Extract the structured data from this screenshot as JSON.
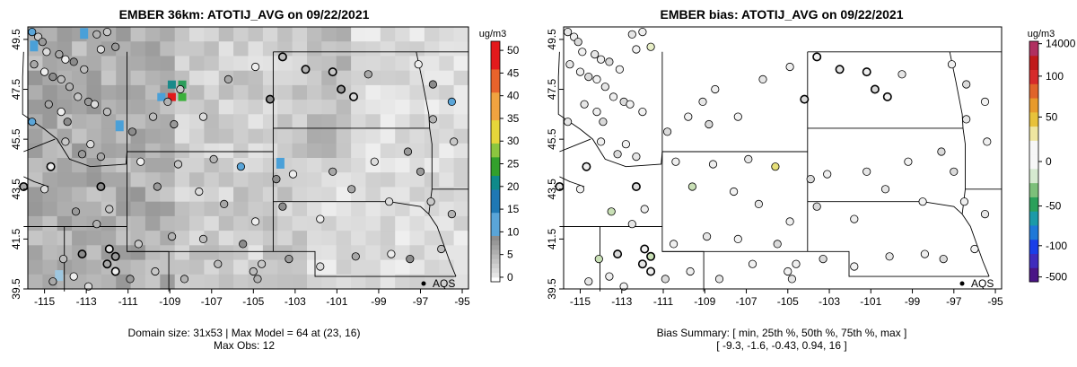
{
  "chart_data": [
    {
      "type": "heatmap",
      "title": "EMBER 36km: ATOTIJ_AVG on 09/22/2021",
      "x_ticks": [
        "-115",
        "-113",
        "-111",
        "-109",
        "-107",
        "-105",
        "-103",
        "-101",
        "-99",
        "-97",
        "-95"
      ],
      "y_ticks": [
        "39.5",
        "41.5",
        "43.5",
        "45.5",
        "47.5",
        "49.5"
      ],
      "xlim": [
        -115.8,
        -94.7
      ],
      "ylim": [
        39.5,
        50.0
      ],
      "colorbar": {
        "units": "ug/m3",
        "ticks": [
          "0",
          "5",
          "10",
          "15",
          "20",
          "25",
          "30",
          "35",
          "40",
          "45",
          "50"
        ],
        "range": [
          0,
          52
        ]
      },
      "station_label": "AQS",
      "footer": [
        "Domain size: 31x53 | Max Model = 64 at (23, 16)",
        "Max Obs: 12"
      ],
      "max_model": 64,
      "max_obs": 12
    },
    {
      "type": "scatter",
      "title": "EMBER bias: ATOTIJ_AVG on 09/22/2021",
      "x_ticks": [
        "-115",
        "-113",
        "-111",
        "-109",
        "-107",
        "-105",
        "-103",
        "-101",
        "-99",
        "-97",
        "-95"
      ],
      "y_ticks": [
        "39.5",
        "41.5",
        "43.5",
        "45.5",
        "47.5",
        "49.5"
      ],
      "xlim": [
        -115.8,
        -94.7
      ],
      "ylim": [
        39.5,
        50.0
      ],
      "colorbar": {
        "units": "ug/m3",
        "ticks": [
          "14000",
          "100",
          "50",
          "0",
          "-50",
          "-100",
          "-500"
        ]
      },
      "station_label": "AQS",
      "footer": [
        "Bias Summary: [ min, 25th %, 50th %, 75th %, max ]",
        "[ -9.3,   -1.6,   -0.43,   0.94,   16 ]"
      ],
      "bias_summary": {
        "min": -9.3,
        "p25": -1.6,
        "p50": -0.43,
        "p75": 0.94,
        "max": 16
      }
    }
  ]
}
